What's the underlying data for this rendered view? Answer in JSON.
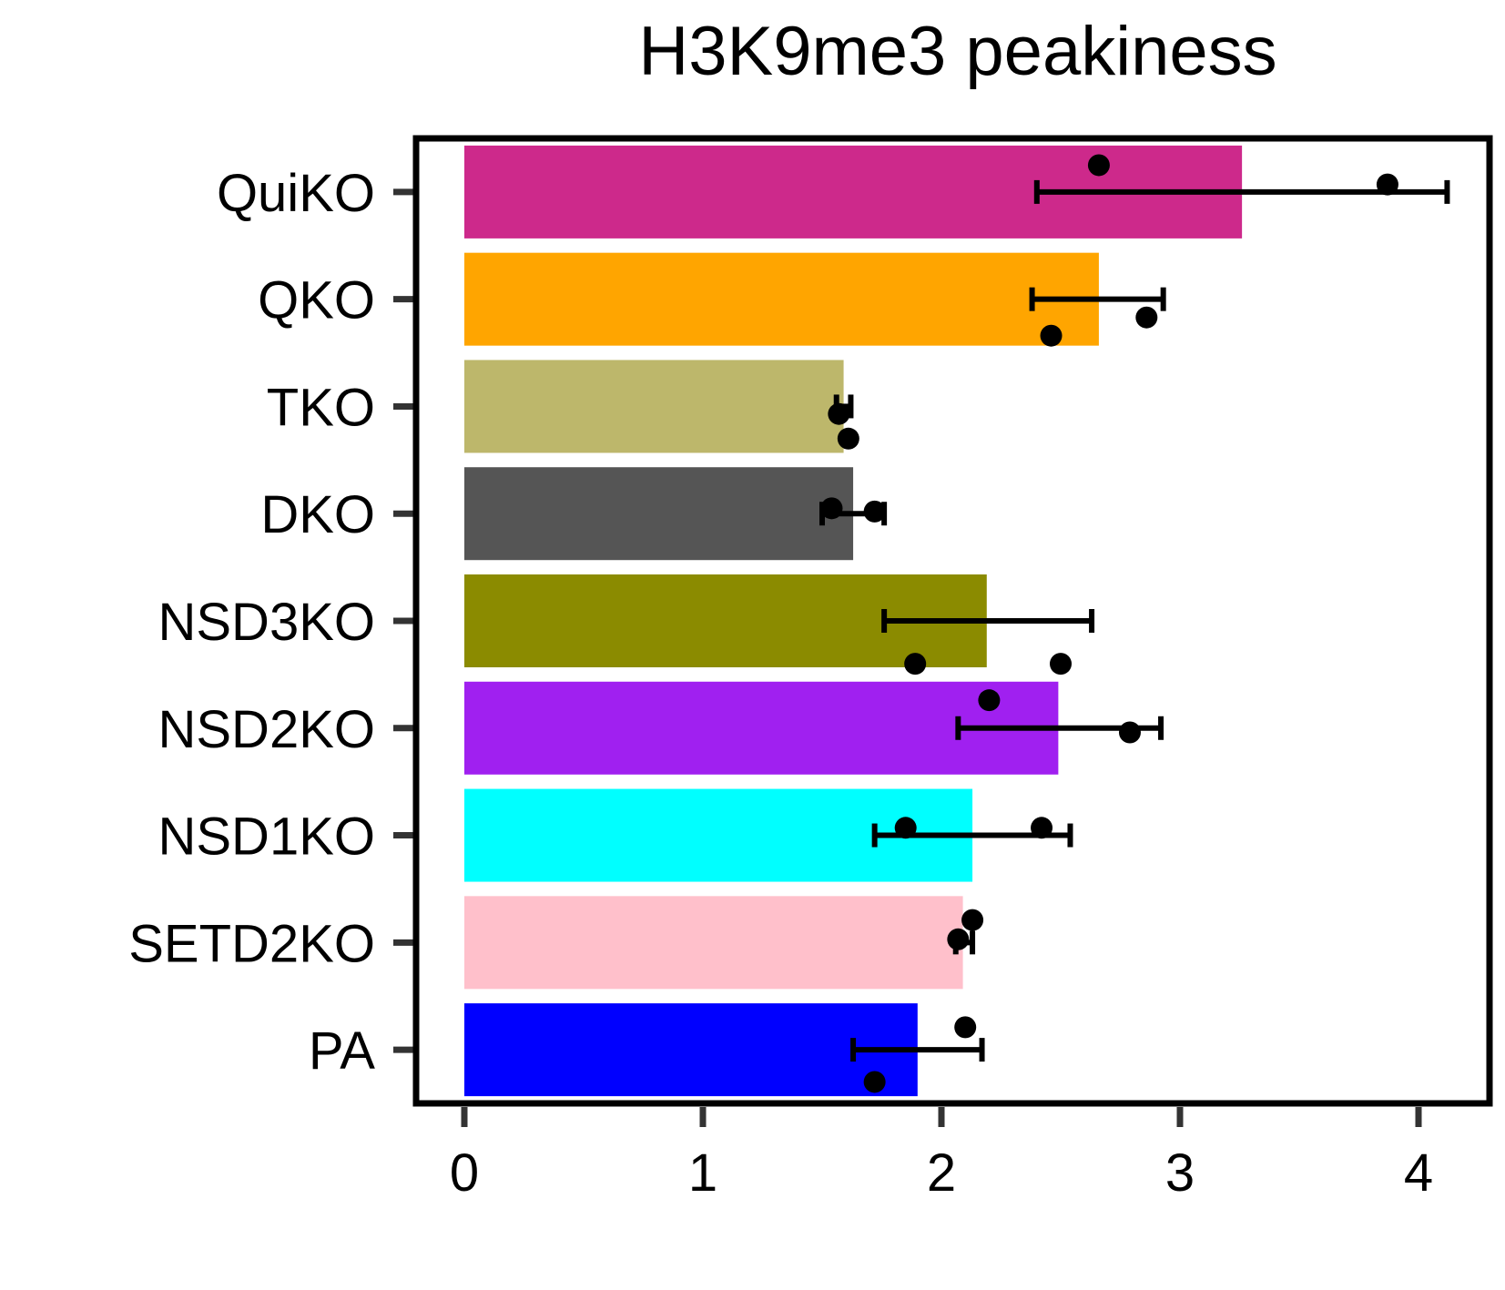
{
  "chart_data": {
    "type": "bar",
    "orientation": "horizontal",
    "title": "H3K9me3 peakiness",
    "xlabel": "",
    "ylabel": "",
    "xlim": [
      -0.21,
      4.3
    ],
    "xticks": [
      0,
      1,
      2,
      3,
      4
    ],
    "grid": false,
    "categories": [
      "QuiKO",
      "QKO",
      "TKO",
      "DKO",
      "NSD3KO",
      "NSD2KO",
      "NSD1KO",
      "SETD2KO",
      "PA"
    ],
    "colors": [
      "#cd298b",
      "#ffa500",
      "#bdb76b",
      "#555555",
      "#8b8b00",
      "#a020f0",
      "#00ffff",
      "#ffc0cb",
      "#0000ff"
    ],
    "values": [
      3.26,
      2.66,
      1.59,
      1.63,
      2.19,
      2.49,
      2.13,
      2.09,
      1.9
    ],
    "error_low": [
      2.4,
      2.38,
      1.56,
      1.5,
      1.76,
      2.07,
      1.72,
      2.06,
      1.63
    ],
    "error_high": [
      4.12,
      2.93,
      1.62,
      1.76,
      2.63,
      2.92,
      2.54,
      2.13,
      2.17
    ],
    "points": [
      [
        {
          "x": 2.66,
          "dy": -0.25
        },
        {
          "x": 3.87,
          "dy": -0.07
        }
      ],
      [
        {
          "x": 2.46,
          "dy": 0.34
        },
        {
          "x": 2.86,
          "dy": 0.17
        }
      ],
      [
        {
          "x": 1.57,
          "dy": 0.07
        },
        {
          "x": 1.61,
          "dy": 0.3
        }
      ],
      [
        {
          "x": 1.54,
          "dy": -0.05
        },
        {
          "x": 1.72,
          "dy": -0.02
        }
      ],
      [
        {
          "x": 1.89,
          "dy": 0.4
        },
        {
          "x": 2.5,
          "dy": 0.4
        }
      ],
      [
        {
          "x": 2.2,
          "dy": -0.26
        },
        {
          "x": 2.79,
          "dy": 0.04
        }
      ],
      [
        {
          "x": 1.85,
          "dy": -0.07
        },
        {
          "x": 2.42,
          "dy": -0.07
        }
      ],
      [
        {
          "x": 2.07,
          "dy": -0.03
        },
        {
          "x": 2.13,
          "dy": -0.21
        }
      ],
      [
        {
          "x": 1.72,
          "dy": 0.3
        },
        {
          "x": 2.1,
          "dy": -0.21
        }
      ]
    ]
  }
}
